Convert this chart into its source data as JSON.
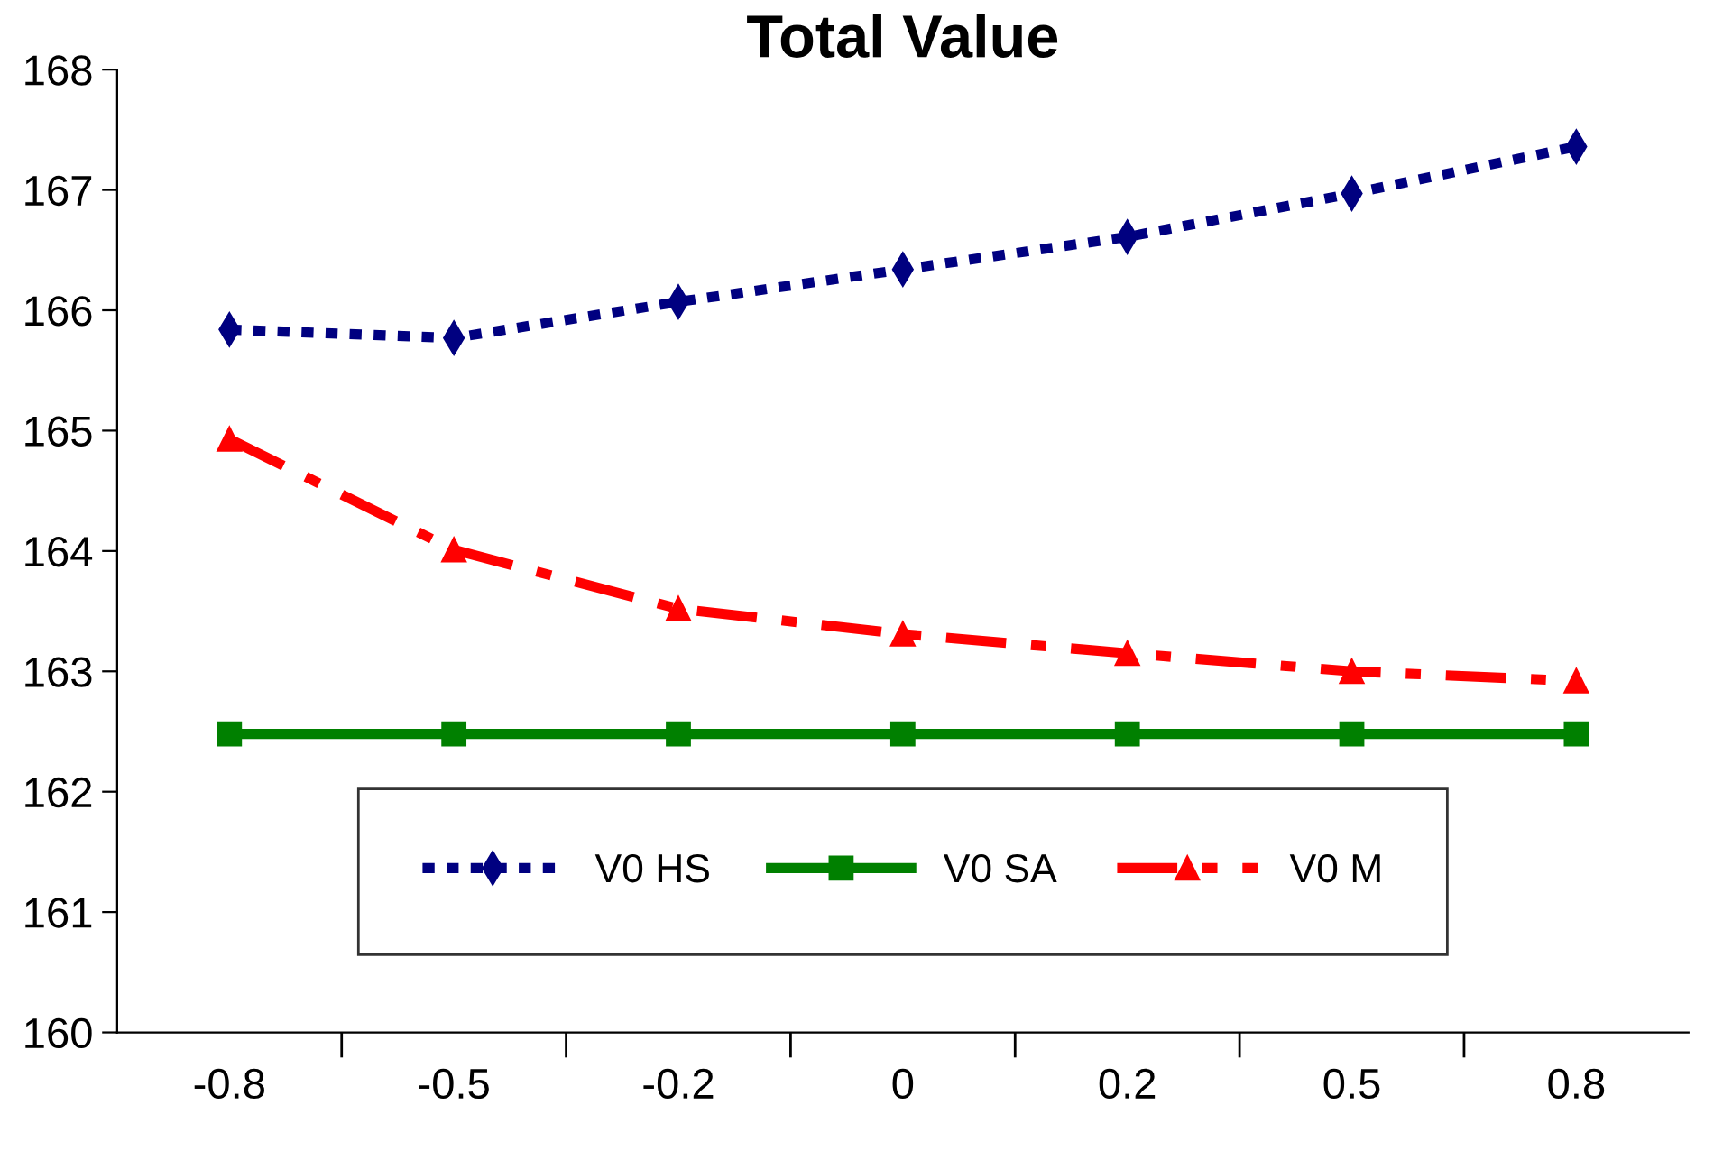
{
  "chart_data": {
    "type": "line",
    "title": "Total Value",
    "categories": [
      "-0.8",
      "-0.5",
      "-0.2",
      "0",
      "0.2",
      "0.5",
      "0.8"
    ],
    "series": [
      {
        "name": "V0 HS",
        "color": "#000080",
        "marker": "diamond",
        "line_style": "dotted",
        "values": [
          165.84,
          165.77,
          166.07,
          166.34,
          166.61,
          166.97,
          167.36
        ]
      },
      {
        "name": "V0 SA",
        "color": "#008000",
        "marker": "square",
        "line_style": "solid",
        "values": [
          162.48,
          162.48,
          162.48,
          162.48,
          162.48,
          162.48,
          162.48
        ]
      },
      {
        "name": "V0 M",
        "color": "#ff0000",
        "marker": "triangle",
        "line_style": "dashed",
        "values": [
          164.93,
          164.01,
          163.52,
          163.31,
          163.15,
          163.0,
          162.92
        ]
      }
    ],
    "ylim": [
      160,
      168
    ],
    "yticks": [
      160,
      161,
      162,
      163,
      164,
      165,
      166,
      167,
      168
    ],
    "grid": false,
    "legend": "bottom"
  }
}
